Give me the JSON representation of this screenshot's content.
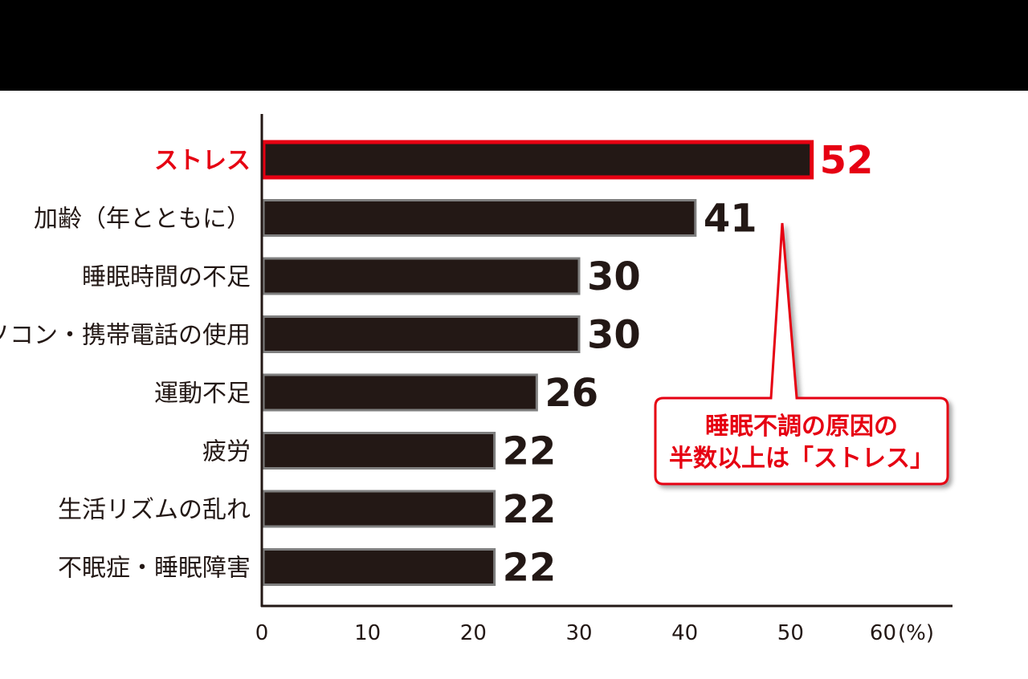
{
  "chart_data": {
    "type": "bar",
    "orientation": "horizontal",
    "categories": [
      "ストレス",
      "加齢（年とともに）",
      "睡眠時間の不足",
      "パソコン・携帯電話の使用",
      "運動不足",
      "疲労",
      "生活リズムの乱れ",
      "不眠症・睡眠障害"
    ],
    "values": [
      52,
      41,
      30,
      30,
      26,
      22,
      22,
      22
    ],
    "value_labels": [
      "52",
      "41",
      "30",
      "30",
      "26",
      "22",
      "22",
      "22"
    ],
    "highlight_index": 0,
    "xlim": [
      0,
      60
    ],
    "xticks": [
      "0",
      "10",
      "20",
      "30",
      "40",
      "50",
      "60"
    ],
    "x_unit": "(%)",
    "grid": false,
    "annotation": {
      "lines": [
        "睡眠不調の原因の",
        "半数以上は「ストレス」"
      ]
    }
  },
  "colors": {
    "bar_fill": "#231815",
    "bar_edge": "#7f7f7f",
    "highlight": "#e60012",
    "text": "#231815",
    "top_band": "#000000"
  }
}
